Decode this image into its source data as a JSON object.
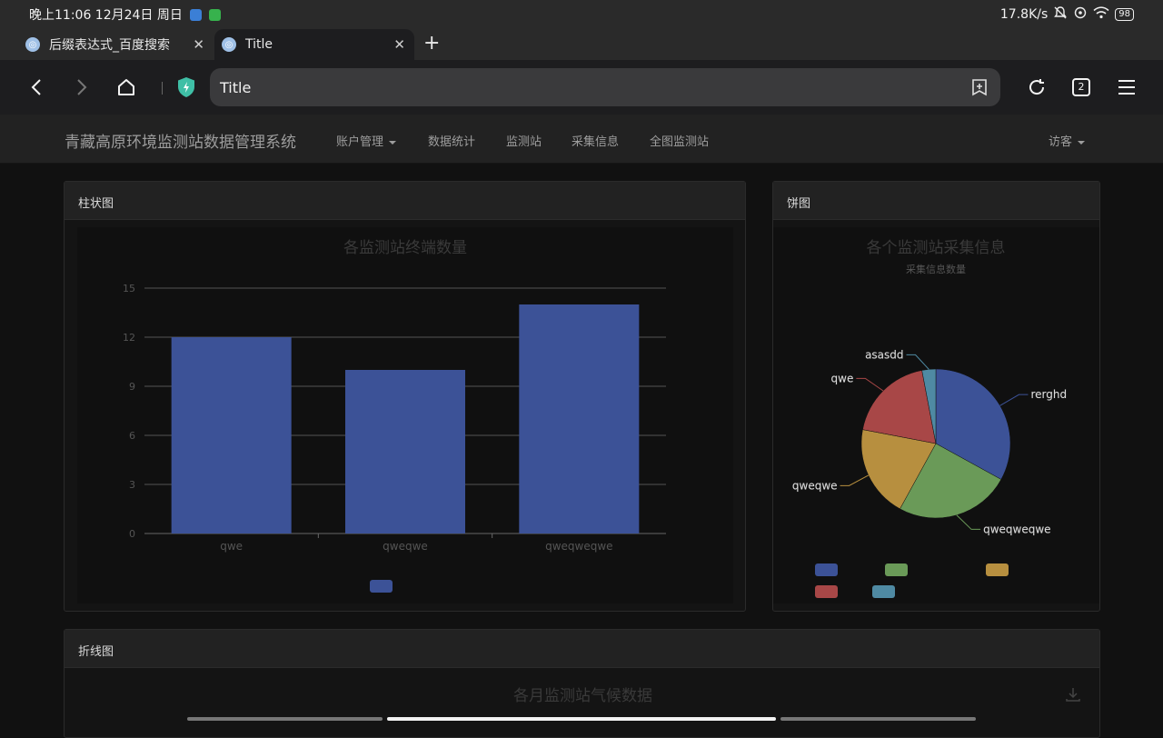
{
  "status_bar": {
    "time": "晚上11:06 12月24日 周日",
    "net_speed": "17.8K/s",
    "battery": "98"
  },
  "browser": {
    "tabs": [
      {
        "title": "后缀表达式_百度搜索",
        "active": false
      },
      {
        "title": "Title",
        "active": true
      }
    ],
    "url_text": "Title",
    "tab_count": "2"
  },
  "site": {
    "brand": "青藏高原环境监测站数据管理系统",
    "nav": [
      {
        "label": "账户管理",
        "dropdown": true
      },
      {
        "label": "数据统计",
        "dropdown": false
      },
      {
        "label": "监测站",
        "dropdown": false
      },
      {
        "label": "采集信息",
        "dropdown": false
      },
      {
        "label": "全图监测站",
        "dropdown": false
      }
    ],
    "user_menu": "访客"
  },
  "panels": {
    "bar": {
      "heading": "柱状图"
    },
    "pie": {
      "heading": "饼图"
    },
    "line": {
      "heading": "折线图",
      "chart_title": "各月监测站气候数据"
    }
  },
  "chart_data": [
    {
      "type": "bar",
      "title": "各监测站终端数量",
      "categories": [
        "qwe",
        "qweqwe",
        "qweqweqwe"
      ],
      "values": [
        12,
        10,
        14
      ],
      "ylim": [
        0,
        15
      ],
      "yticks": [
        0,
        3,
        6,
        9,
        12,
        15
      ],
      "grid": true,
      "legend": "bottom",
      "color": "#3c5297"
    },
    {
      "type": "pie",
      "title": "各个监测站采集信息",
      "subtitle": "采集信息数量",
      "slices": [
        {
          "label": "rerghd",
          "value": 33,
          "color": "#3c5297"
        },
        {
          "label": "qweqweqwe",
          "value": 25,
          "color": "#6a9a58"
        },
        {
          "label": "qweqwe",
          "value": 20,
          "color": "#b78f3f"
        },
        {
          "label": "qwe",
          "value": 19,
          "color": "#a84747"
        },
        {
          "label": "asasdd",
          "value": 3,
          "color": "#4f8aa3"
        }
      ],
      "legend": "bottom"
    }
  ]
}
